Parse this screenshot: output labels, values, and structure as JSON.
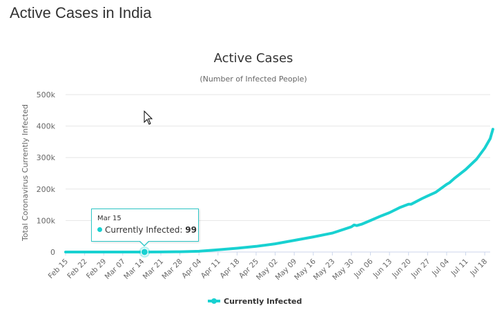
{
  "page": {
    "title": "Active Cases in India"
  },
  "colors": {
    "series": "#18d1d1",
    "grid": "#e6e6e6",
    "text": "#666666",
    "title": "#333333"
  },
  "tooltip": {
    "date": "Mar 15",
    "series": "Currently Infected",
    "value": "99"
  },
  "chart_data": {
    "type": "line",
    "title": "Active Cases",
    "subtitle": "(Number of Infected People)",
    "xlabel": "",
    "ylabel": "Total Coronavirus Currently Infected",
    "ylim": [
      0,
      500000
    ],
    "yticks": [
      0,
      100000,
      200000,
      300000,
      400000,
      500000
    ],
    "ytick_labels": [
      "0",
      "100k",
      "200k",
      "300k",
      "400k",
      "500k"
    ],
    "x_range_days": [
      0,
      156
    ],
    "xticks": [
      {
        "label": "Feb 15",
        "day": 0
      },
      {
        "label": "Feb 22",
        "day": 7
      },
      {
        "label": "Feb 29",
        "day": 14
      },
      {
        "label": "Mar 07",
        "day": 21
      },
      {
        "label": "Mar 14",
        "day": 28
      },
      {
        "label": "Mar 21",
        "day": 35
      },
      {
        "label": "Mar 28",
        "day": 42
      },
      {
        "label": "Apr 04",
        "day": 49
      },
      {
        "label": "Apr 11",
        "day": 56
      },
      {
        "label": "Apr 18",
        "day": 63
      },
      {
        "label": "Apr 25",
        "day": 70
      },
      {
        "label": "May 02",
        "day": 77
      },
      {
        "label": "May 09",
        "day": 84
      },
      {
        "label": "May 16",
        "day": 91
      },
      {
        "label": "May 23",
        "day": 98
      },
      {
        "label": "May 30",
        "day": 105
      },
      {
        "label": "Jun 06",
        "day": 112
      },
      {
        "label": "Jun 13",
        "day": 119
      },
      {
        "label": "Jun 20",
        "day": 126
      },
      {
        "label": "Jun 27",
        "day": 133
      },
      {
        "label": "Jul 04",
        "day": 140
      },
      {
        "label": "Jul 11",
        "day": 147
      },
      {
        "label": "Jul 18",
        "day": 154
      }
    ],
    "series": [
      {
        "name": "Currently Infected",
        "points": [
          [
            0,
            3
          ],
          [
            7,
            3
          ],
          [
            14,
            3
          ],
          [
            21,
            30
          ],
          [
            29,
            99
          ],
          [
            35,
            300
          ],
          [
            42,
            900
          ],
          [
            49,
            2500
          ],
          [
            56,
            7000
          ],
          [
            63,
            12000
          ],
          [
            70,
            18000
          ],
          [
            77,
            26000
          ],
          [
            84,
            37000
          ],
          [
            91,
            48000
          ],
          [
            98,
            60000
          ],
          [
            105,
            80000
          ],
          [
            106,
            86000
          ],
          [
            107,
            84000
          ],
          [
            109,
            89000
          ],
          [
            112,
            100000
          ],
          [
            116,
            115000
          ],
          [
            119,
            125000
          ],
          [
            123,
            142000
          ],
          [
            126,
            152000
          ],
          [
            127,
            152000
          ],
          [
            131,
            170000
          ],
          [
            133,
            178000
          ],
          [
            136,
            190000
          ],
          [
            140,
            215000
          ],
          [
            141,
            220000
          ],
          [
            143,
            235000
          ],
          [
            147,
            262000
          ],
          [
            151,
            295000
          ],
          [
            154,
            330000
          ],
          [
            156,
            360000
          ],
          [
            157,
            390000
          ]
        ]
      }
    ],
    "highlight": {
      "day": 29,
      "value": 99
    },
    "legend": "bottom-center"
  }
}
